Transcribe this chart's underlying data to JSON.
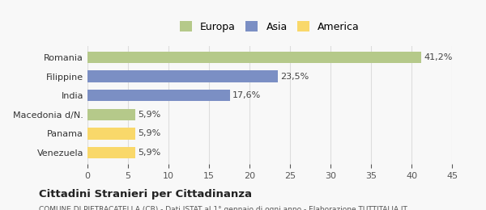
{
  "categories": [
    "Venezuela",
    "Panama",
    "Macedonia d/N.",
    "India",
    "Filippine",
    "Romania"
  ],
  "values": [
    5.9,
    5.9,
    5.9,
    17.6,
    23.5,
    41.2
  ],
  "labels": [
    "5,9%",
    "5,9%",
    "5,9%",
    "17,6%",
    "23,5%",
    "41,2%"
  ],
  "colors": [
    "#f9d86a",
    "#f9d86a",
    "#b5c98a",
    "#7b8fc4",
    "#7b8fc4",
    "#b5c98a"
  ],
  "legend": [
    {
      "label": "Europa",
      "color": "#b5c98a"
    },
    {
      "label": "Asia",
      "color": "#7b8fc4"
    },
    {
      "label": "America",
      "color": "#f9d86a"
    }
  ],
  "xlim": [
    0,
    45
  ],
  "xticks": [
    0,
    5,
    10,
    15,
    20,
    25,
    30,
    35,
    40,
    45
  ],
  "title_bold": "Cittadini Stranieri per Cittadinanza",
  "subtitle": "COMUNE DI PIETRACATELLA (CB) - Dati ISTAT al 1° gennaio di ogni anno - Elaborazione TUTTITALIA.IT",
  "bg_color": "#f8f8f8",
  "grid_color": "#dddddd"
}
